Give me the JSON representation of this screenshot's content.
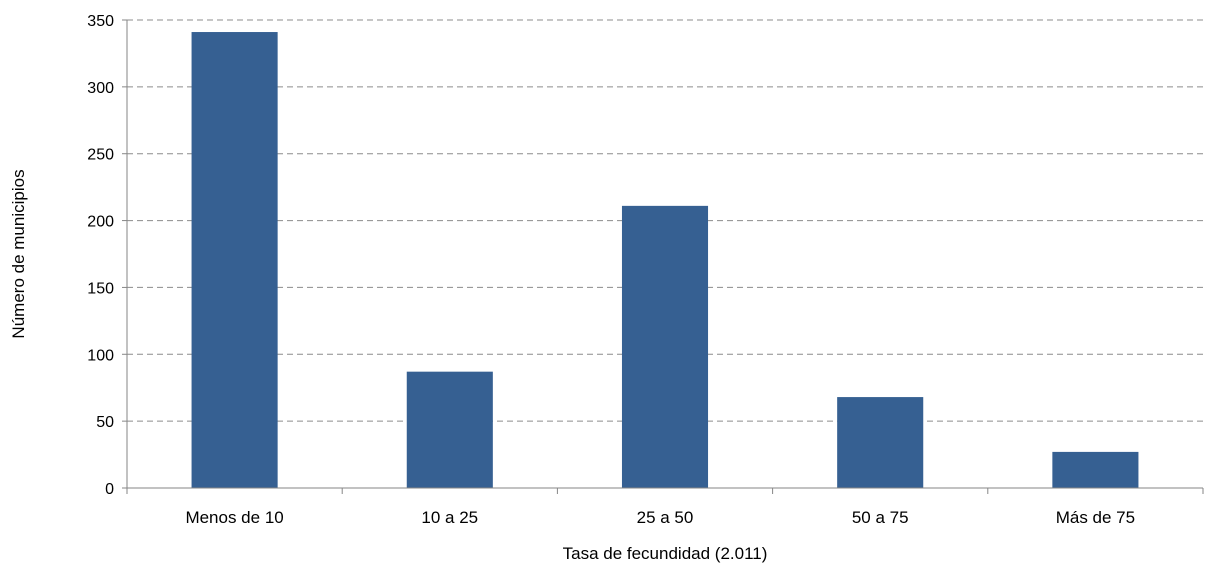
{
  "chart_data": {
    "type": "bar",
    "title": "",
    "xlabel": "Tasa de fecundidad (2.011)",
    "ylabel": "Número de municipios",
    "categories": [
      "Menos de 10",
      "10 a 25",
      "25 a 50",
      "50 a 75",
      "Más de 75"
    ],
    "values": [
      341,
      87,
      211,
      68,
      27
    ],
    "ylim": [
      0,
      350
    ],
    "yticks": [
      0,
      50,
      100,
      150,
      200,
      250,
      300,
      350
    ],
    "grid": true,
    "legend": "none",
    "colors": {
      "bar": "#366092",
      "grid": "#8c8c8c",
      "axis": "#868686"
    }
  }
}
